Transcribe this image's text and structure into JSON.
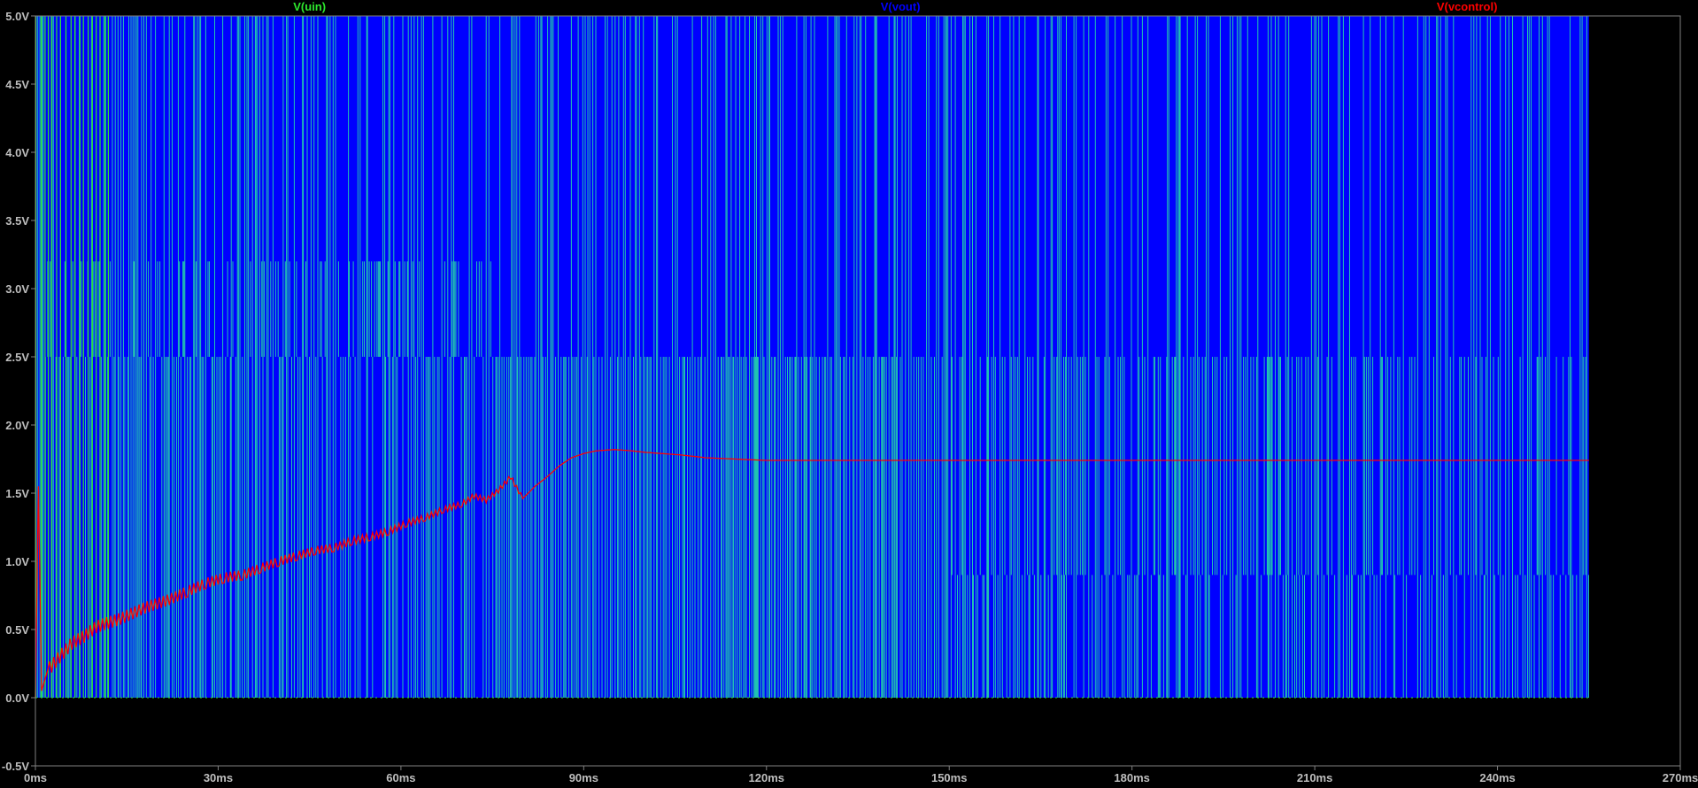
{
  "chart_data": {
    "type": "line",
    "title": "",
    "xlabel": "",
    "ylabel": "",
    "xlim": [
      0,
      270
    ],
    "ylim": [
      -0.5,
      5.0
    ],
    "x_unit": "ms",
    "grid": false,
    "legend_placement": "top",
    "x_ticks": [
      {
        "value": 0,
        "label": "0ms"
      },
      {
        "value": 30,
        "label": "30ms"
      },
      {
        "value": 60,
        "label": "60ms"
      },
      {
        "value": 90,
        "label": "90ms"
      },
      {
        "value": 120,
        "label": "120ms"
      },
      {
        "value": 150,
        "label": "150ms"
      },
      {
        "value": 180,
        "label": "180ms"
      },
      {
        "value": 210,
        "label": "210ms"
      },
      {
        "value": 240,
        "label": "240ms"
      },
      {
        "value": 270,
        "label": "270ms"
      }
    ],
    "y_ticks": [
      {
        "value": 5.0,
        "label": "5.0V"
      },
      {
        "value": 4.5,
        "label": "4.5V"
      },
      {
        "value": 4.0,
        "label": "4.0V"
      },
      {
        "value": 3.5,
        "label": "3.5V"
      },
      {
        "value": 3.0,
        "label": "3.0V"
      },
      {
        "value": 2.5,
        "label": "2.5V"
      },
      {
        "value": 2.0,
        "label": "2.0V"
      },
      {
        "value": 1.5,
        "label": "1.5V"
      },
      {
        "value": 1.0,
        "label": "1.0V"
      },
      {
        "value": 0.5,
        "label": "0.5V"
      },
      {
        "value": 0.0,
        "label": "0.0V"
      },
      {
        "value": -0.5,
        "label": "-0.5V"
      }
    ],
    "series": [
      {
        "name": "V(uin)",
        "color": "#2ee82e",
        "style": "pwm_square_wave",
        "x_range": [
          0,
          255
        ],
        "levels": {
          "low": 0.0,
          "high": 5.0
        },
        "mid_levels": [
          {
            "x_range": [
              0,
              75
            ],
            "low": 2.5,
            "high": 3.2
          },
          {
            "x_range": [
              150,
              255
            ],
            "low": 0.9,
            "high": 2.5
          }
        ]
      },
      {
        "name": "V(vout)",
        "color": "#0000ff",
        "style": "pwm_square_wave",
        "x_range": [
          0,
          255
        ],
        "levels": {
          "low": 0.0,
          "high": 5.0
        }
      },
      {
        "name": "V(vcontrol)",
        "color": "#ff0000",
        "style": "line",
        "x": [
          0,
          0.5,
          1,
          2,
          4,
          6,
          8,
          10,
          12,
          14,
          16,
          18,
          20,
          22,
          25,
          28,
          31,
          34,
          37,
          40,
          43,
          46,
          49,
          52,
          55,
          58,
          61,
          64,
          67,
          70,
          72,
          74,
          76,
          78,
          80,
          82,
          84,
          86,
          88,
          90,
          92,
          95,
          98,
          100,
          103,
          106,
          110,
          115,
          120,
          130,
          150,
          180,
          210,
          240,
          255
        ],
        "y": [
          0.0,
          1.55,
          0.05,
          0.2,
          0.3,
          0.4,
          0.45,
          0.52,
          0.55,
          0.58,
          0.62,
          0.66,
          0.69,
          0.72,
          0.78,
          0.84,
          0.88,
          0.9,
          0.95,
          1.0,
          1.04,
          1.08,
          1.1,
          1.15,
          1.18,
          1.22,
          1.28,
          1.32,
          1.38,
          1.42,
          1.48,
          1.45,
          1.52,
          1.62,
          1.46,
          1.55,
          1.62,
          1.7,
          1.76,
          1.79,
          1.81,
          1.82,
          1.81,
          1.8,
          1.79,
          1.78,
          1.76,
          1.75,
          1.74,
          1.74,
          1.74,
          1.74,
          1.74,
          1.74,
          1.74
        ]
      }
    ]
  }
}
